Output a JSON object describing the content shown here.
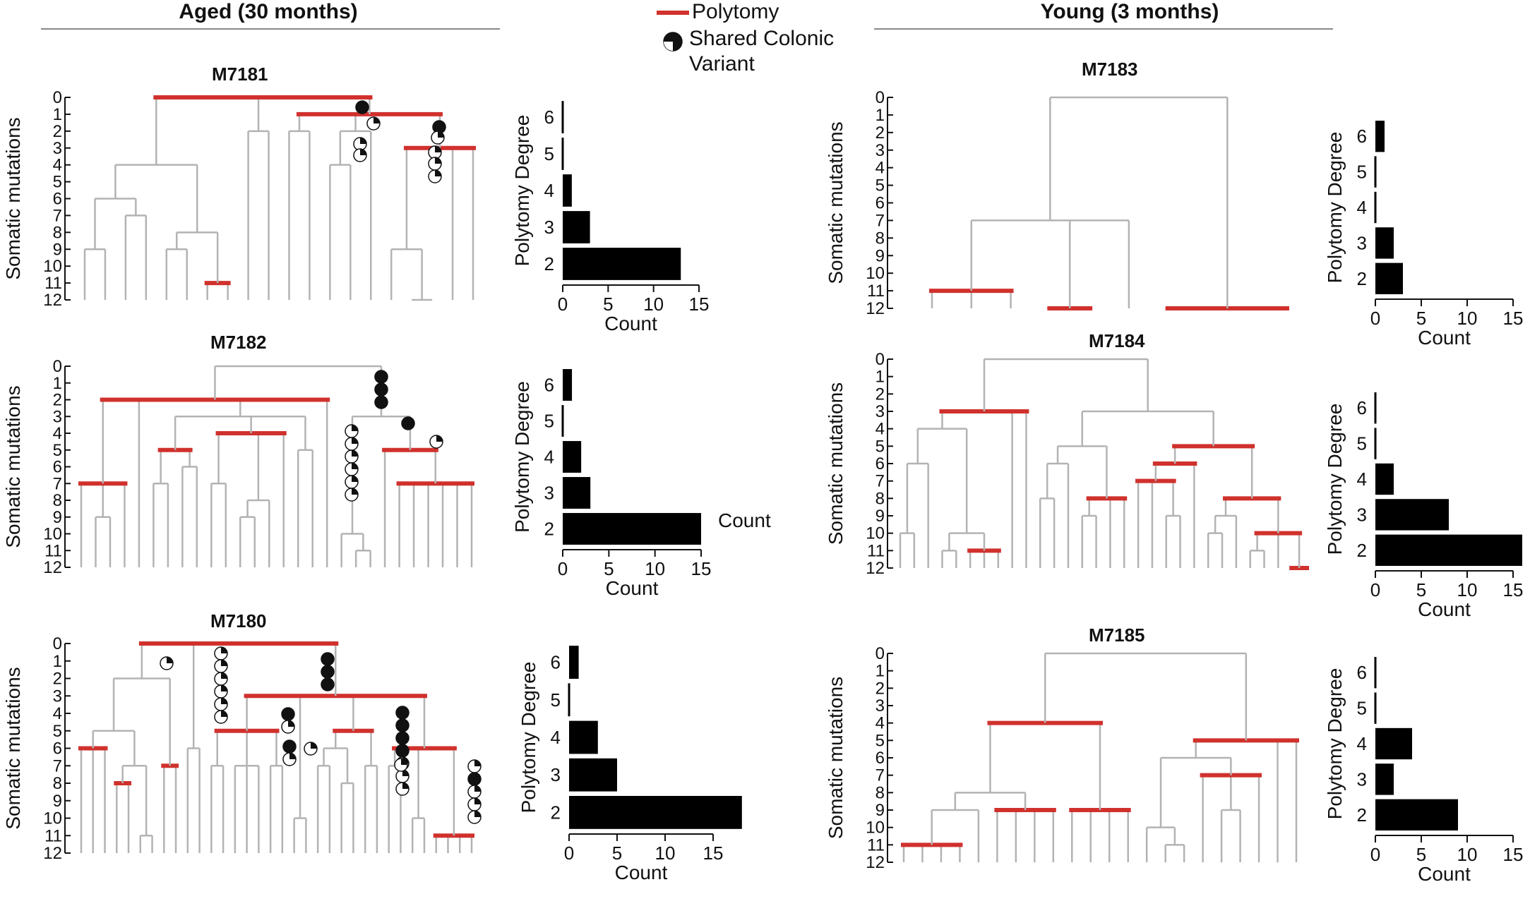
{
  "headers": {
    "aged": "Aged (30 months)",
    "young": "Young   (3 months)"
  },
  "legend": {
    "polytomy": "Polytomy",
    "shared_line1": "Shared Colonic",
    "shared_line2": "Variant"
  },
  "colors": {
    "polytomy": "#d0312d",
    "branch": "#b3b3b3",
    "bar": "#000000"
  },
  "annotations": {
    "extra_count": "Count"
  },
  "chart_data": [
    {
      "type": "dendrogram",
      "title": "M7181",
      "ylabel": "Somatic mutations",
      "yticks": [
        0,
        1,
        2,
        3,
        4,
        5,
        6,
        7,
        8,
        9,
        10,
        11,
        12
      ],
      "ylim": [
        0,
        12
      ],
      "group": "Aged (30 months)"
    },
    {
      "type": "bar",
      "orientation": "horizontal",
      "panel": "M7181",
      "xlabel": "Count",
      "ylabel": "Polytomy Degree",
      "categories": [
        "2",
        "3",
        "4",
        "5",
        "6"
      ],
      "values": [
        13,
        3,
        1,
        0,
        0
      ],
      "xticks": [
        0,
        5,
        10,
        15
      ],
      "xlim": [
        0,
        15
      ]
    },
    {
      "type": "dendrogram",
      "title": "M7182",
      "ylabel": "Somatic mutations",
      "yticks": [
        0,
        1,
        2,
        3,
        4,
        5,
        6,
        7,
        8,
        9,
        10,
        11,
        12
      ],
      "ylim": [
        0,
        12
      ],
      "group": "Aged (30 months)"
    },
    {
      "type": "bar",
      "orientation": "horizontal",
      "panel": "M7182",
      "xlabel": "Count",
      "ylabel": "Polytomy Degree",
      "categories": [
        "2",
        "3",
        "4",
        "5",
        "6"
      ],
      "values": [
        15,
        3,
        2,
        0,
        1
      ],
      "xticks": [
        0,
        5,
        10,
        15
      ],
      "xlim": [
        0,
        15
      ]
    },
    {
      "type": "dendrogram",
      "title": "M7180",
      "ylabel": "Somatic mutations",
      "yticks": [
        0,
        1,
        2,
        3,
        4,
        5,
        6,
        7,
        8,
        9,
        10,
        11,
        12
      ],
      "ylim": [
        0,
        12
      ],
      "group": "Aged (30 months)"
    },
    {
      "type": "bar",
      "orientation": "horizontal",
      "panel": "M7180",
      "xlabel": "Count",
      "ylabel": "Polytomy Degree",
      "categories": [
        "2",
        "3",
        "4",
        "5",
        "6"
      ],
      "values": [
        18,
        5,
        3,
        0,
        1
      ],
      "xticks": [
        0,
        5,
        10,
        15
      ],
      "xlim": [
        0,
        18
      ]
    },
    {
      "type": "dendrogram",
      "title": "M7183",
      "ylabel": "Somatic mutations",
      "yticks": [
        0,
        1,
        2,
        3,
        4,
        5,
        6,
        7,
        8,
        9,
        10,
        11,
        12
      ],
      "ylim": [
        0,
        12
      ],
      "group": "Young (3 months)"
    },
    {
      "type": "bar",
      "orientation": "horizontal",
      "panel": "M7183",
      "xlabel": "Count",
      "ylabel": "Polytomy Degree",
      "categories": [
        "2",
        "3",
        "4",
        "5",
        "6"
      ],
      "values": [
        3,
        2,
        0,
        0,
        1
      ],
      "xticks": [
        0,
        5,
        10,
        15
      ],
      "xlim": [
        0,
        15
      ]
    },
    {
      "type": "dendrogram",
      "title": "M7184",
      "ylabel": "Somatic mutations",
      "yticks": [
        0,
        1,
        2,
        3,
        4,
        5,
        6,
        7,
        8,
        9,
        10,
        11,
        12
      ],
      "ylim": [
        0,
        12
      ],
      "group": "Young (3 months)"
    },
    {
      "type": "bar",
      "orientation": "horizontal",
      "panel": "M7184",
      "xlabel": "Count",
      "ylabel": "Polytomy Degree",
      "categories": [
        "2",
        "3",
        "4",
        "5",
        "6"
      ],
      "values": [
        16,
        8,
        2,
        0,
        0
      ],
      "xticks": [
        0,
        5,
        10,
        15
      ],
      "xlim": [
        0,
        16
      ]
    },
    {
      "type": "dendrogram",
      "title": "M7185",
      "ylabel": "Somatic mutations",
      "yticks": [
        0,
        1,
        2,
        3,
        4,
        5,
        6,
        7,
        8,
        9,
        10,
        11,
        12
      ],
      "ylim": [
        0,
        12
      ],
      "group": "Young (3 months)"
    },
    {
      "type": "bar",
      "orientation": "horizontal",
      "panel": "M7185",
      "xlabel": "Count",
      "ylabel": "Polytomy Degree",
      "categories": [
        "2",
        "3",
        "4",
        "5",
        "6"
      ],
      "values": [
        9,
        2,
        4,
        0,
        0
      ],
      "xticks": [
        0,
        5,
        10,
        15
      ],
      "xlim": [
        0,
        15
      ]
    }
  ]
}
